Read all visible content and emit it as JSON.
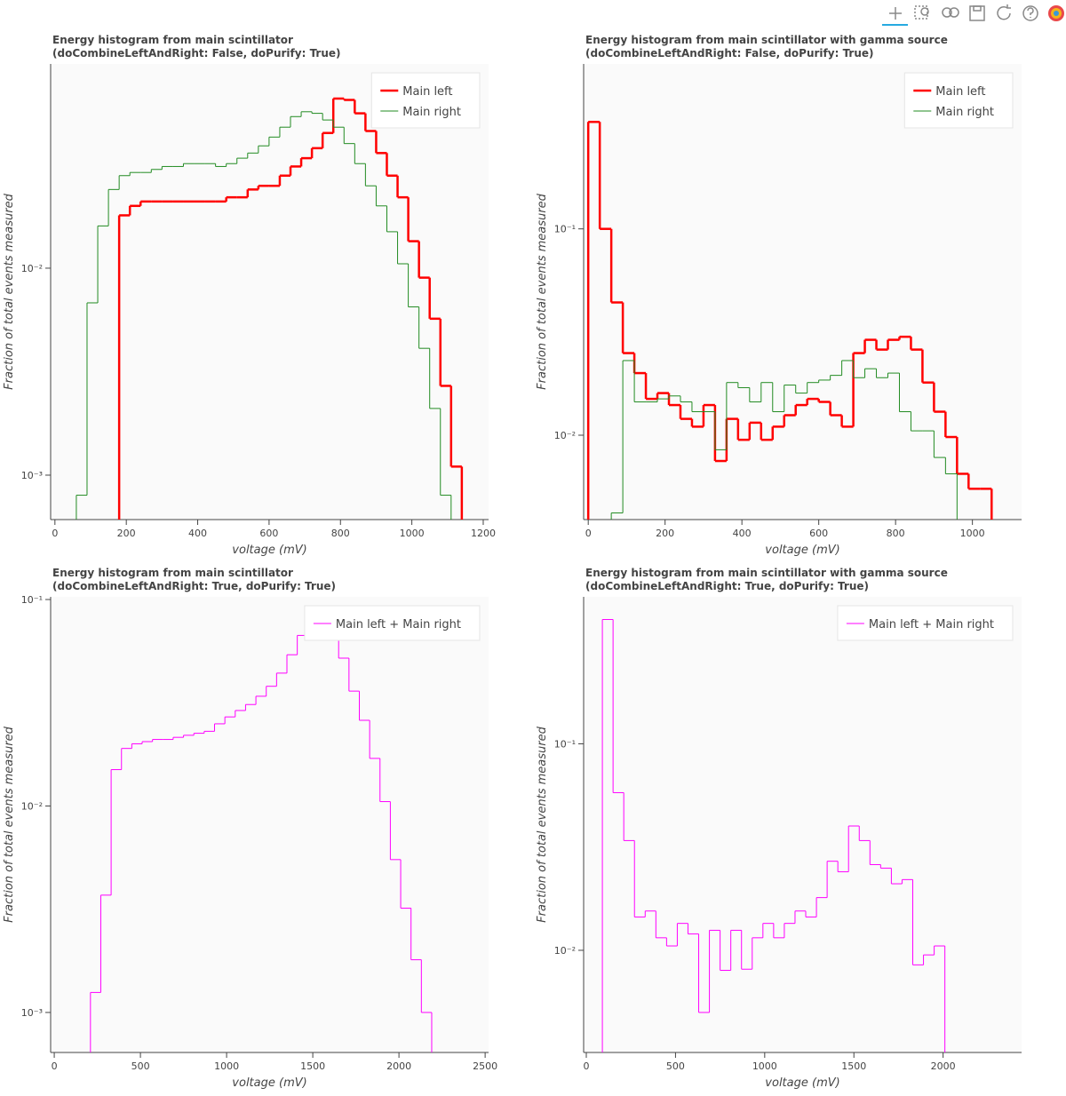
{
  "chart_data": [
    {
      "type": "histogram",
      "title": "Energy histogram from main scintillator",
      "subtitle": "(doCombineLeftAndRight: False, doPurify: True)",
      "xlabel": "voltage (mV)",
      "ylabel": "Fraction of total events measured",
      "xlim": [
        -12,
        1215
      ],
      "ylim": [
        0.00061,
        0.097
      ],
      "log_y": true,
      "legend": "top_right",
      "xticks": [
        0,
        200,
        400,
        600,
        800,
        1000,
        1200
      ],
      "yticks": [
        {
          "value": 0.001,
          "label": "10⁻³"
        },
        {
          "value": 0.01,
          "label": "10⁻²"
        }
      ],
      "series": [
        {
          "name": "Main left",
          "color": "#ff0000",
          "line_width": 2.5,
          "bins": [
            180,
            210,
            240,
            270,
            300,
            330,
            360,
            390,
            420,
            450,
            480,
            510,
            540,
            570,
            600,
            630,
            660,
            690,
            720,
            750,
            780,
            810,
            840,
            870,
            900,
            930,
            960,
            990,
            1020,
            1050,
            1080,
            1110,
            1140
          ],
          "values": [
            0.018,
            0.02,
            0.021,
            0.021,
            0.021,
            0.021,
            0.021,
            0.021,
            0.021,
            0.021,
            0.022,
            0.022,
            0.024,
            0.025,
            0.025,
            0.028,
            0.031,
            0.034,
            0.038,
            0.045,
            0.066,
            0.065,
            0.056,
            0.046,
            0.036,
            0.028,
            0.022,
            0.0135,
            0.009,
            0.0057,
            0.0027,
            0.0011
          ]
        },
        {
          "name": "Main right",
          "color": "#228b22",
          "line_width": 1,
          "bins": [
            60,
            90,
            120,
            150,
            180,
            210,
            240,
            270,
            300,
            330,
            360,
            390,
            420,
            450,
            480,
            510,
            540,
            570,
            600,
            630,
            660,
            690,
            720,
            750,
            780,
            810,
            840,
            870,
            900,
            930,
            960,
            990,
            1020,
            1050,
            1080,
            1110
          ],
          "values": [
            0.0008,
            0.0068,
            0.016,
            0.024,
            0.028,
            0.029,
            0.029,
            0.03,
            0.031,
            0.031,
            0.032,
            0.032,
            0.032,
            0.031,
            0.032,
            0.034,
            0.036,
            0.039,
            0.043,
            0.048,
            0.054,
            0.057,
            0.056,
            0.052,
            0.048,
            0.04,
            0.032,
            0.025,
            0.02,
            0.015,
            0.0105,
            0.0065,
            0.0041,
            0.0021,
            0.0008
          ]
        }
      ]
    },
    {
      "type": "histogram",
      "title": "Energy histogram from main scintillator with gamma source",
      "subtitle": "(doCombineLeftAndRight: False, doPurify: True)",
      "xlabel": "voltage (mV)",
      "ylabel": "Fraction of total events measured",
      "xlim": [
        -12,
        1128
      ],
      "ylim": [
        0.0039,
        0.63
      ],
      "log_y": true,
      "legend": "top_right",
      "xticks": [
        0,
        200,
        400,
        600,
        800,
        1000
      ],
      "yticks": [
        {
          "value": 0.01,
          "label": "10⁻²"
        },
        {
          "value": 0.1,
          "label": "10⁻¹"
        }
      ],
      "series": [
        {
          "name": "Main left",
          "color": "#ff0000",
          "line_width": 2.5,
          "bins": [
            0,
            30,
            60,
            90,
            120,
            150,
            180,
            210,
            240,
            270,
            300,
            330,
            360,
            390,
            420,
            450,
            480,
            510,
            540,
            570,
            600,
            630,
            660,
            690,
            720,
            750,
            780,
            810,
            840,
            870,
            900,
            930,
            960,
            990,
            1020,
            1050
          ],
          "values": [
            0.33,
            0.1,
            0.044,
            0.025,
            0.02,
            0.015,
            0.016,
            0.014,
            0.012,
            0.011,
            0.014,
            0.0075,
            0.012,
            0.0095,
            0.0115,
            0.0095,
            0.011,
            0.0125,
            0.014,
            0.015,
            0.0145,
            0.0125,
            0.011,
            0.025,
            0.029,
            0.026,
            0.029,
            0.03,
            0.026,
            0.018,
            0.013,
            0.0098,
            0.0065,
            0.0055,
            0.0055
          ]
        },
        {
          "name": "Main right",
          "color": "#228b22",
          "line_width": 1,
          "bins": [
            60,
            90,
            120,
            150,
            180,
            210,
            240,
            270,
            300,
            330,
            360,
            390,
            420,
            450,
            480,
            510,
            540,
            570,
            600,
            630,
            660,
            690,
            720,
            750,
            780,
            810,
            840,
            870,
            900,
            930,
            960
          ],
          "values": [
            0.0042,
            0.023,
            0.0145,
            0.0145,
            0.015,
            0.0155,
            0.0145,
            0.013,
            0.013,
            0.0085,
            0.018,
            0.017,
            0.0145,
            0.018,
            0.013,
            0.0175,
            0.016,
            0.018,
            0.0185,
            0.0195,
            0.023,
            0.019,
            0.021,
            0.019,
            0.02,
            0.013,
            0.0105,
            0.0105,
            0.0078,
            0.0065
          ]
        }
      ]
    },
    {
      "type": "histogram",
      "title": "Energy histogram from main scintillator",
      "subtitle": "(doCombineLeftAndRight: True, doPurify: True)",
      "xlabel": "voltage (mV)",
      "ylabel": "Fraction of total events measured",
      "xlim": [
        -21,
        2520
      ],
      "ylim": [
        0.00064,
        0.103
      ],
      "log_y": true,
      "legend": "top_right",
      "xticks": [
        0,
        500,
        1000,
        1500,
        2000,
        2500
      ],
      "yticks": [
        {
          "value": 0.001,
          "label": "10⁻³"
        },
        {
          "value": 0.01,
          "label": "10⁻²"
        },
        {
          "value": 0.1,
          "label": "10⁻¹"
        }
      ],
      "series": [
        {
          "name": "Main left + Main right",
          "color": "#ff00ff",
          "line_width": 1,
          "bins": [
            210,
            270,
            330,
            390,
            450,
            510,
            570,
            630,
            690,
            750,
            810,
            870,
            930,
            990,
            1050,
            1110,
            1170,
            1230,
            1290,
            1350,
            1410,
            1470,
            1530,
            1590,
            1650,
            1710,
            1770,
            1830,
            1890,
            1950,
            2010,
            2070,
            2130,
            2190,
            2250
          ],
          "values": [
            0.00125,
            0.0037,
            0.015,
            0.019,
            0.02,
            0.0205,
            0.021,
            0.021,
            0.0215,
            0.022,
            0.0225,
            0.023,
            0.025,
            0.027,
            0.029,
            0.031,
            0.034,
            0.038,
            0.044,
            0.054,
            0.067,
            0.075,
            0.079,
            0.072,
            0.052,
            0.036,
            0.026,
            0.017,
            0.0105,
            0.0055,
            0.0032,
            0.0018,
            0.001,
            0.0005
          ]
        }
      ]
    },
    {
      "type": "histogram",
      "title": "Energy histogram from main scintillator with gamma source",
      "subtitle": "(doCombineLeftAndRight: True, doPurify: True)",
      "xlabel": "voltage (mV)",
      "ylabel": "Fraction of total events measured",
      "xlim": [
        -15,
        2440
      ],
      "ylim": [
        0.0032,
        0.515
      ],
      "log_y": true,
      "legend": "top_right",
      "xticks": [
        0,
        500,
        1000,
        1500,
        2000
      ],
      "yticks": [
        {
          "value": 0.01,
          "label": "10⁻²"
        },
        {
          "value": 0.1,
          "label": "10⁻¹"
        }
      ],
      "series": [
        {
          "name": "Main left + Main right",
          "color": "#ff00ff",
          "line_width": 1,
          "bins": [
            90,
            150,
            210,
            270,
            330,
            390,
            450,
            510,
            570,
            630,
            690,
            750,
            810,
            870,
            930,
            990,
            1050,
            1110,
            1170,
            1230,
            1290,
            1350,
            1410,
            1470,
            1530,
            1590,
            1650,
            1710,
            1770,
            1830,
            1890,
            1950,
            2010
          ],
          "values": [
            0.4,
            0.058,
            0.034,
            0.0145,
            0.0155,
            0.0115,
            0.0105,
            0.0135,
            0.012,
            0.005,
            0.0125,
            0.008,
            0.0125,
            0.0081,
            0.0115,
            0.0135,
            0.0115,
            0.0135,
            0.0155,
            0.0145,
            0.018,
            0.027,
            0.024,
            0.04,
            0.034,
            0.026,
            0.025,
            0.021,
            0.022,
            0.0085,
            0.0095,
            0.0105
          ]
        }
      ]
    }
  ]
}
